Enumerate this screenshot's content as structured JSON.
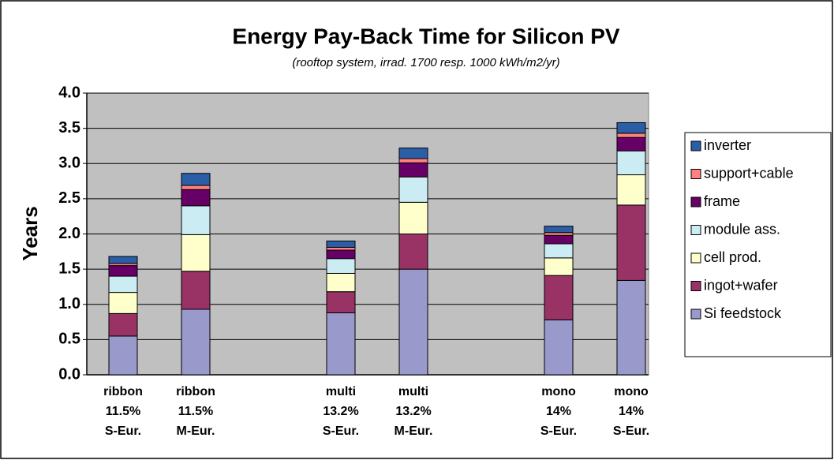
{
  "chart_data": {
    "type": "stacked-bar",
    "title": "Energy Pay-Back Time for Silicon PV",
    "subtitle": "(rooftop system, irrad. 1700 resp. 1000 kWh/m2/yr)",
    "y_label": "Years",
    "categories": [
      [
        "ribbon",
        "11.5%",
        "S-Eur."
      ],
      [
        "ribbon",
        "11.5%",
        "M-Eur."
      ],
      null,
      [
        "multi",
        "13.2%",
        "S-Eur."
      ],
      [
        "multi",
        "13.2%",
        "M-Eur."
      ],
      null,
      [
        "mono",
        "14%",
        "S-Eur."
      ],
      [
        "mono",
        "14%",
        "S-Eur."
      ]
    ],
    "series": [
      {
        "name": "Si feedstock",
        "color": "#9999cc",
        "values": [
          0.55,
          0.93,
          null,
          0.88,
          1.5,
          null,
          0.78,
          1.34
        ]
      },
      {
        "name": "ingot+wafer",
        "color": "#993366",
        "values": [
          0.32,
          0.54,
          null,
          0.3,
          0.5,
          null,
          0.63,
          1.07
        ]
      },
      {
        "name": "cell prod.",
        "color": "#ffffcc",
        "values": [
          0.3,
          0.52,
          null,
          0.26,
          0.45,
          null,
          0.25,
          0.43
        ]
      },
      {
        "name": "module ass.",
        "color": "#ccecf4",
        "values": [
          0.23,
          0.41,
          null,
          0.21,
          0.36,
          null,
          0.2,
          0.34
        ]
      },
      {
        "name": "frame",
        "color": "#660066",
        "values": [
          0.15,
          0.23,
          null,
          0.12,
          0.2,
          null,
          0.12,
          0.19
        ]
      },
      {
        "name": "support+cable",
        "color": "#ff8080",
        "values": [
          0.03,
          0.06,
          null,
          0.04,
          0.06,
          null,
          0.04,
          0.06
        ]
      },
      {
        "name": "inverter",
        "color": "#2a5fa8",
        "values": [
          0.1,
          0.17,
          null,
          0.09,
          0.15,
          null,
          0.09,
          0.15
        ]
      }
    ],
    "ylim": [
      0,
      4
    ],
    "yticks": [
      {
        "value": 0,
        "label": "0.0"
      },
      {
        "value": 0.5,
        "label": "0.5"
      },
      {
        "value": 1,
        "label": "1.0"
      },
      {
        "value": 1.5,
        "label": "1.5"
      },
      {
        "value": 2,
        "label": "2.0"
      },
      {
        "value": 2.5,
        "label": "2.5"
      },
      {
        "value": 3,
        "label": "3.0"
      },
      {
        "value": 3.5,
        "label": "3.5"
      },
      {
        "value": 4,
        "label": "4.0"
      }
    ],
    "grid": true,
    "legend": "right"
  }
}
